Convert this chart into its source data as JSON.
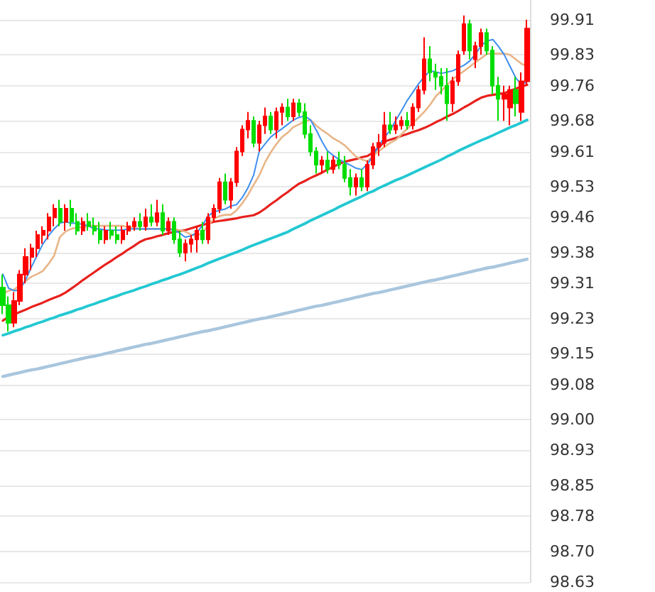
{
  "chart_data": {
    "type": "candlestick",
    "categories": [
      null,
      null,
      null,
      null,
      null,
      null,
      null,
      null,
      null,
      null,
      null,
      null,
      null,
      null,
      null,
      null,
      null,
      null,
      null,
      null,
      null,
      null,
      null,
      null,
      null,
      null,
      null,
      null,
      null,
      null,
      null,
      null,
      null,
      null,
      null,
      null,
      null,
      null,
      null,
      null,
      null,
      null,
      null,
      null,
      null,
      null,
      null,
      null,
      null,
      null,
      null,
      null,
      null,
      null,
      null,
      null,
      null,
      null,
      null,
      null,
      null,
      null,
      null,
      null,
      null,
      null,
      null,
      null,
      null,
      null,
      null,
      null,
      null,
      null,
      null,
      null,
      null,
      null,
      null,
      null,
      null,
      null,
      null,
      null,
      null,
      null,
      null,
      null,
      null,
      null,
      null,
      null,
      null
    ],
    "ohlc": [
      [
        99.3,
        99.33,
        99.24,
        99.26
      ],
      [
        99.26,
        99.28,
        99.2,
        99.22
      ],
      [
        99.22,
        99.29,
        99.21,
        99.27
      ],
      [
        99.27,
        99.34,
        99.26,
        99.33
      ],
      [
        99.33,
        99.39,
        99.31,
        99.37
      ],
      [
        99.37,
        99.4,
        99.34,
        99.39
      ],
      [
        99.39,
        99.43,
        99.37,
        99.42
      ],
      [
        99.42,
        99.44,
        99.4,
        99.43
      ],
      [
        99.43,
        99.47,
        99.41,
        99.46
      ],
      [
        99.46,
        99.49,
        99.44,
        99.48
      ],
      [
        99.48,
        99.5,
        99.44,
        99.45
      ],
      [
        99.45,
        99.49,
        99.43,
        99.48
      ],
      [
        99.48,
        99.5,
        99.44,
        99.45
      ],
      [
        99.45,
        99.47,
        99.42,
        99.43
      ],
      [
        99.43,
        99.46,
        99.42,
        99.45
      ],
      [
        99.45,
        99.47,
        99.43,
        99.44
      ],
      [
        99.44,
        99.46,
        99.42,
        99.43
      ],
      [
        99.43,
        99.45,
        99.4,
        99.41
      ],
      [
        99.41,
        99.44,
        99.4,
        99.43
      ],
      [
        99.43,
        99.45,
        99.41,
        99.42
      ],
      [
        99.42,
        99.44,
        99.4,
        99.41
      ],
      [
        99.41,
        99.44,
        99.4,
        99.43
      ],
      [
        99.43,
        99.45,
        99.42,
        99.44
      ],
      [
        99.44,
        99.46,
        99.43,
        99.45
      ],
      [
        99.45,
        99.47,
        99.43,
        99.44
      ],
      [
        99.44,
        99.48,
        99.43,
        99.46
      ],
      [
        99.46,
        99.49,
        99.44,
        99.45
      ],
      [
        99.45,
        99.5,
        99.44,
        99.47
      ],
      [
        99.47,
        99.49,
        99.42,
        99.43
      ],
      [
        99.43,
        99.46,
        99.42,
        99.45
      ],
      [
        99.45,
        99.46,
        99.4,
        99.41
      ],
      [
        99.41,
        99.43,
        99.37,
        99.38
      ],
      [
        99.38,
        99.41,
        99.36,
        99.4
      ],
      [
        99.4,
        99.42,
        99.38,
        99.41
      ],
      [
        99.41,
        99.44,
        99.38,
        99.43
      ],
      [
        99.43,
        99.45,
        99.4,
        99.41
      ],
      [
        99.41,
        99.47,
        99.4,
        99.46
      ],
      [
        99.46,
        99.49,
        99.45,
        99.48
      ],
      [
        99.48,
        99.55,
        99.47,
        99.54
      ],
      [
        99.54,
        99.56,
        99.49,
        99.5
      ],
      [
        99.5,
        99.55,
        99.48,
        99.54
      ],
      [
        99.54,
        99.62,
        99.53,
        99.61
      ],
      [
        99.61,
        99.67,
        99.6,
        99.66
      ],
      [
        99.66,
        99.7,
        99.64,
        99.68
      ],
      [
        99.68,
        99.69,
        99.62,
        99.63
      ],
      [
        99.63,
        99.68,
        99.61,
        99.67
      ],
      [
        99.67,
        99.71,
        99.65,
        99.69
      ],
      [
        99.69,
        99.7,
        99.65,
        99.66
      ],
      [
        99.66,
        99.71,
        99.64,
        99.7
      ],
      [
        99.7,
        99.72,
        99.67,
        99.71
      ],
      [
        99.71,
        99.73,
        99.68,
        99.69
      ],
      [
        99.69,
        99.73,
        99.68,
        99.72
      ],
      [
        99.72,
        99.73,
        99.69,
        99.7
      ],
      [
        99.7,
        99.72,
        99.64,
        99.65
      ],
      [
        99.65,
        99.67,
        99.6,
        99.61
      ],
      [
        99.61,
        99.62,
        99.56,
        99.58
      ],
      [
        99.58,
        99.6,
        99.56,
        99.59
      ],
      [
        99.59,
        99.61,
        99.56,
        99.57
      ],
      [
        99.57,
        99.6,
        99.56,
        99.59
      ],
      [
        99.59,
        99.61,
        99.57,
        99.58
      ],
      [
        99.58,
        99.6,
        99.54,
        99.55
      ],
      [
        99.55,
        99.57,
        99.51,
        99.53
      ],
      [
        99.53,
        99.56,
        99.51,
        99.55
      ],
      [
        99.55,
        99.57,
        99.52,
        99.53
      ],
      [
        99.53,
        99.59,
        99.52,
        99.58
      ],
      [
        99.58,
        99.63,
        99.57,
        99.62
      ],
      [
        99.62,
        99.65,
        99.6,
        99.63
      ],
      [
        99.63,
        99.7,
        99.62,
        99.67
      ],
      [
        99.67,
        99.7,
        99.65,
        99.66
      ],
      [
        99.66,
        99.69,
        99.65,
        99.67
      ],
      [
        99.67,
        99.69,
        99.66,
        99.68
      ],
      [
        99.68,
        99.7,
        99.66,
        99.67
      ],
      [
        99.67,
        99.72,
        99.66,
        99.71
      ],
      [
        99.71,
        99.76,
        99.7,
        99.75
      ],
      [
        99.75,
        99.87,
        99.74,
        99.82
      ],
      [
        99.82,
        99.85,
        99.77,
        99.79
      ],
      [
        99.79,
        99.81,
        99.75,
        99.78
      ],
      [
        99.78,
        99.8,
        99.74,
        99.76
      ],
      [
        99.76,
        99.8,
        99.68,
        99.72
      ],
      [
        99.72,
        99.78,
        99.7,
        99.77
      ],
      [
        99.77,
        99.84,
        99.76,
        99.83
      ],
      [
        99.84,
        99.92,
        99.83,
        99.9
      ],
      [
        99.9,
        99.91,
        99.82,
        99.84
      ],
      [
        99.82,
        99.86,
        99.8,
        99.85
      ],
      [
        99.85,
        99.89,
        99.83,
        99.88
      ],
      [
        99.88,
        99.89,
        99.83,
        99.84
      ],
      [
        99.84,
        99.85,
        99.74,
        99.76
      ],
      [
        99.76,
        99.78,
        99.68,
        99.73
      ],
      [
        99.73,
        99.76,
        99.68,
        99.74
      ],
      [
        99.71,
        99.76,
        99.67,
        99.75
      ],
      [
        99.75,
        99.78,
        99.69,
        99.72
      ],
      [
        99.7,
        99.79,
        99.68,
        99.77
      ],
      [
        99.77,
        99.91,
        99.76,
        99.89
      ]
    ],
    "colors": [
      "#00dd00",
      "#00dd00",
      "#ff0000",
      "#ff0000",
      "#ff0000",
      "#ff0000",
      "#ff0000",
      "#ff0000",
      "#ff0000",
      "#ff0000",
      "#00dd00",
      "#ff0000",
      "#00dd00",
      "#00dd00",
      "#ff0000",
      "#00dd00",
      "#00dd00",
      "#00dd00",
      "#ff0000",
      "#00dd00",
      "#00dd00",
      "#ff0000",
      "#ff0000",
      "#ff0000",
      "#00dd00",
      "#ff0000",
      "#00dd00",
      "#ff0000",
      "#00dd00",
      "#ff0000",
      "#00dd00",
      "#00dd00",
      "#ff0000",
      "#ff0000",
      "#ff0000",
      "#00dd00",
      "#ff0000",
      "#ff0000",
      "#ff0000",
      "#00dd00",
      "#ff0000",
      "#ff0000",
      "#ff0000",
      "#ff0000",
      "#00dd00",
      "#ff0000",
      "#ff0000",
      "#00dd00",
      "#ff0000",
      "#ff0000",
      "#00dd00",
      "#ff0000",
      "#00dd00",
      "#00dd00",
      "#00dd00",
      "#00dd00",
      "#ff0000",
      "#00dd00",
      "#ff0000",
      "#00dd00",
      "#00dd00",
      "#00dd00",
      "#ff0000",
      "#00dd00",
      "#ff0000",
      "#ff0000",
      "#ff0000",
      "#ff0000",
      "#00dd00",
      "#ff0000",
      "#ff0000",
      "#00dd00",
      "#ff0000",
      "#ff0000",
      "#ff0000",
      "#00dd00",
      "#00dd00",
      "#00dd00",
      "#00dd00",
      "#ff0000",
      "#ff0000",
      "#ff0000",
      "#00dd00",
      "#ff0000",
      "#ff0000",
      "#00dd00",
      "#00dd00",
      "#00dd00",
      "#ff0000",
      "#ff0000",
      "#00dd00",
      "#ff0000",
      "#ff0000"
    ],
    "series": [
      {
        "type": "line",
        "color": "#a9c6de",
        "values": [
          99.098,
          99.101,
          99.104,
          99.107,
          99.11,
          99.113,
          99.115,
          99.118,
          99.121,
          99.124,
          99.127,
          99.13,
          99.133,
          99.136,
          99.139,
          99.142,
          99.144,
          99.147,
          99.15,
          99.153,
          99.156,
          99.159,
          99.162,
          99.165,
          99.168,
          99.171,
          99.173,
          99.176,
          99.179,
          99.182,
          99.185,
          99.188,
          99.191,
          99.194,
          99.197,
          99.2,
          99.202,
          99.205,
          99.208,
          99.211,
          99.214,
          99.217,
          99.22,
          99.223,
          99.226,
          99.229,
          99.231,
          99.234,
          99.237,
          99.24,
          99.243,
          99.246,
          99.249,
          99.252,
          99.255,
          99.258,
          99.26,
          99.263,
          99.266,
          99.269,
          99.272,
          99.275,
          99.278,
          99.281,
          99.284,
          99.287,
          99.289,
          99.292,
          99.295,
          99.298,
          99.301,
          99.304,
          99.307,
          99.31,
          99.313,
          99.316,
          99.318,
          99.321,
          99.324,
          99.327,
          99.33,
          99.333,
          99.336,
          99.339,
          99.342,
          99.345,
          99.347,
          99.35,
          99.353,
          99.356,
          99.359,
          99.362,
          99.365
        ]
      },
      {
        "type": "line",
        "color": "#22c8d2",
        "values": [
          99.192,
          99.196,
          99.201,
          99.205,
          99.21,
          99.214,
          99.219,
          99.223,
          99.228,
          99.232,
          99.237,
          99.241,
          99.245,
          99.25,
          99.254,
          99.259,
          99.263,
          99.268,
          99.272,
          99.277,
          99.281,
          99.286,
          99.29,
          99.294,
          99.299,
          99.303,
          99.308,
          99.312,
          99.317,
          99.321,
          99.326,
          99.33,
          99.335,
          99.34,
          99.345,
          99.35,
          99.356,
          99.361,
          99.366,
          99.371,
          99.376,
          99.381,
          99.386,
          99.392,
          99.397,
          99.402,
          99.407,
          99.412,
          99.417,
          99.422,
          99.427,
          99.434,
          99.44,
          99.446,
          99.453,
          99.459,
          99.465,
          99.471,
          99.477,
          99.484,
          99.49,
          99.496,
          99.502,
          99.508,
          99.515,
          99.52,
          99.527,
          99.533,
          99.539,
          99.545,
          99.55,
          99.556,
          99.562,
          99.568,
          99.574,
          99.58,
          99.586,
          99.592,
          99.599,
          99.605,
          99.612,
          99.618,
          99.624,
          99.63,
          99.636,
          99.641,
          99.647,
          99.653,
          99.659,
          99.665,
          99.67,
          99.676,
          99.682
        ]
      },
      {
        "type": "line",
        "color": "#e8201c",
        "values": [
          99.225,
          99.234,
          99.239,
          99.245,
          99.25,
          99.256,
          99.261,
          99.266,
          99.272,
          99.277,
          99.282,
          99.289,
          99.298,
          99.307,
          99.317,
          99.326,
          99.335,
          99.344,
          99.353,
          99.361,
          99.37,
          99.378,
          99.387,
          99.395,
          99.404,
          99.41,
          99.413,
          99.417,
          99.42,
          99.424,
          99.427,
          99.429,
          99.431,
          99.435,
          99.439,
          99.443,
          99.446,
          99.45,
          99.452,
          99.454,
          99.456,
          99.458,
          99.461,
          99.463,
          99.465,
          99.471,
          99.48,
          99.49,
          99.499,
          99.509,
          99.518,
          99.528,
          99.537,
          99.543,
          99.55,
          99.556,
          99.562,
          99.569,
          99.575,
          99.582,
          99.587,
          99.59,
          99.593,
          99.597,
          99.6,
          99.608,
          99.62,
          99.633,
          99.637,
          99.641,
          99.646,
          99.65,
          99.655,
          99.659,
          99.664,
          99.67,
          99.677,
          99.683,
          99.69,
          99.696,
          99.703,
          99.711,
          99.718,
          99.726,
          99.733,
          99.737,
          99.739,
          99.741,
          99.743,
          99.748,
          99.753,
          99.758,
          99.762
        ]
      },
      {
        "type": "line",
        "color": "#e8b587",
        "values": [
          99.286,
          99.293,
          99.296,
          99.306,
          99.315,
          99.325,
          99.331,
          99.338,
          99.354,
          99.373,
          99.415,
          99.428,
          99.434,
          99.437,
          99.437,
          99.441,
          99.441,
          99.441,
          99.441,
          99.441,
          99.441,
          99.441,
          99.437,
          99.437,
          99.434,
          99.434,
          99.434,
          99.434,
          99.434,
          99.434,
          99.434,
          99.431,
          99.428,
          99.421,
          99.418,
          99.425,
          99.441,
          99.457,
          99.463,
          99.466,
          99.466,
          99.476,
          99.492,
          99.511,
          99.534,
          99.556,
          99.585,
          99.608,
          99.627,
          99.643,
          99.653,
          99.666,
          99.672,
          99.679,
          99.682,
          99.669,
          99.659,
          99.65,
          99.64,
          99.633,
          99.624,
          99.611,
          99.598,
          99.592,
          99.588,
          99.601,
          99.611,
          99.621,
          99.63,
          99.637,
          99.65,
          99.662,
          99.675,
          99.688,
          99.701,
          99.717,
          99.736,
          99.749,
          99.762,
          99.775,
          99.785,
          99.794,
          99.804,
          99.814,
          99.823,
          99.833,
          99.833,
          99.833,
          99.833,
          99.83,
          99.82,
          99.81,
          99.804
        ]
      },
      {
        "type": "line",
        "color": "#3d8ef0",
        "values": [
          99.331,
          99.299,
          99.293,
          99.296,
          99.318,
          99.347,
          99.373,
          99.399,
          99.418,
          99.434,
          99.447,
          99.45,
          99.447,
          99.447,
          99.444,
          99.441,
          99.434,
          99.434,
          99.431,
          99.431,
          99.431,
          99.431,
          99.434,
          99.434,
          99.434,
          99.434,
          99.434,
          99.434,
          99.434,
          99.434,
          99.431,
          99.425,
          99.415,
          99.418,
          99.425,
          99.441,
          99.463,
          99.473,
          99.476,
          99.479,
          99.486,
          99.489,
          99.505,
          99.527,
          99.556,
          99.611,
          99.627,
          99.643,
          99.653,
          99.662,
          99.672,
          99.682,
          99.688,
          99.691,
          99.682,
          99.659,
          99.633,
          99.611,
          99.601,
          99.592,
          99.585,
          99.579,
          99.572,
          99.569,
          99.582,
          99.601,
          99.624,
          99.643,
          99.659,
          99.682,
          99.704,
          99.727,
          99.746,
          99.765,
          99.781,
          99.794,
          99.791,
          99.788,
          99.791,
          99.794,
          99.801,
          99.807,
          99.817,
          99.833,
          99.852,
          99.862,
          99.865,
          99.849,
          99.83,
          99.804,
          99.778,
          99.762,
          99.769
        ]
      }
    ],
    "ylim": [
      98.63,
      99.955
    ],
    "yticks": [
      99.91,
      99.83,
      99.76,
      99.68,
      99.61,
      99.53,
      99.46,
      99.38,
      99.31,
      99.23,
      99.15,
      99.08,
      {
        "value": 99,
        "label": "99.00"
      },
      98.93,
      98.85,
      98.78,
      {
        "value": 98.7,
        "label": "98.70"
      },
      98.63
    ],
    "tick_labels": "y",
    "grid": "y",
    "line_style": "solid"
  }
}
